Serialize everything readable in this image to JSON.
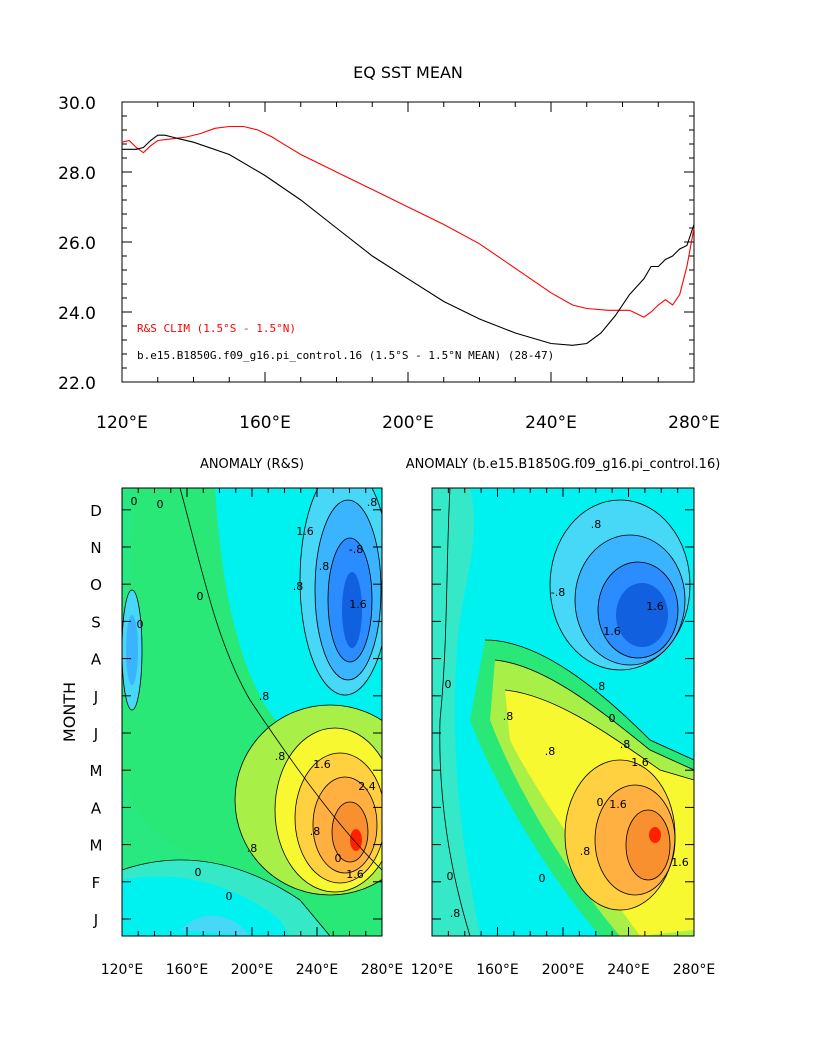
{
  "chart_data": [
    {
      "type": "line",
      "title": "EQ SST MEAN",
      "xlabel": "",
      "ylabel": "",
      "xlim": [
        120,
        280
      ],
      "ylim": [
        22.0,
        30.0
      ],
      "xticks": [
        "120°E",
        "160°E",
        "200°E",
        "240°E",
        "280°E"
      ],
      "yticks": [
        "22.0",
        "24.0",
        "26.0",
        "28.0",
        "30.0"
      ],
      "legend_position": "bottom-left",
      "series": [
        {
          "name": "R&S CLIM (1.5°S - 1.5°N)",
          "color": "#ff0000",
          "x": [
            120,
            122,
            124,
            126,
            128,
            130,
            134,
            138,
            142,
            146,
            150,
            154,
            158,
            162,
            166,
            170,
            176,
            182,
            190,
            200,
            210,
            220,
            230,
            240,
            246,
            250,
            256,
            262,
            266,
            268,
            270,
            272,
            274,
            276,
            278,
            280
          ],
          "y": [
            28.85,
            28.9,
            28.7,
            28.55,
            28.75,
            28.9,
            28.95,
            29.0,
            29.1,
            29.25,
            29.3,
            29.3,
            29.2,
            29.0,
            28.75,
            28.5,
            28.2,
            27.9,
            27.5,
            27.0,
            26.5,
            25.95,
            25.25,
            24.55,
            24.2,
            24.1,
            24.05,
            24.05,
            23.85,
            24.0,
            24.2,
            24.35,
            24.2,
            24.5,
            25.3,
            26.4
          ]
        },
        {
          "name": "b.e15.B1850G.f09_g16.pi_control.16 (1.5°S - 1.5°N MEAN) (28-47)",
          "color": "#000000",
          "x": [
            120,
            122,
            124,
            126,
            128,
            130,
            132,
            134,
            136,
            140,
            150,
            160,
            170,
            180,
            190,
            200,
            210,
            220,
            230,
            240,
            246,
            250,
            254,
            258,
            262,
            266,
            268,
            270,
            272,
            274,
            276,
            278,
            280
          ],
          "y": [
            28.65,
            28.65,
            28.65,
            28.7,
            28.9,
            29.05,
            29.05,
            29.0,
            28.95,
            28.85,
            28.5,
            27.9,
            27.2,
            26.4,
            25.6,
            24.95,
            24.3,
            23.8,
            23.4,
            23.1,
            23.05,
            23.1,
            23.4,
            23.9,
            24.5,
            24.95,
            25.3,
            25.3,
            25.5,
            25.6,
            25.8,
            25.9,
            26.5
          ]
        }
      ]
    },
    {
      "type": "heatmap",
      "title": "ANOMALY (R&S)",
      "xlabel": "",
      "ylabel": "MONTH",
      "xlim": [
        120,
        280
      ],
      "xticks": [
        "120°E",
        "160°E",
        "200°E",
        "240°E",
        "280°E"
      ],
      "yticks": [
        "J",
        "F",
        "M",
        "A",
        "M",
        "J",
        "J",
        "A",
        "S",
        "O",
        "N",
        "D"
      ],
      "contour_labels": [
        "0",
        "0",
        "0",
        "0",
        ".8",
        ".8",
        ".8",
        ".8",
        "1.6",
        "1.6",
        ".8",
        "1.6",
        "2.4",
        "0",
        "0",
        ".8",
        "-.8",
        ".8",
        "1.6",
        "0"
      ],
      "color_scale": [
        "#1060e0",
        "#2a8cff",
        "#3ab4ff",
        "#46d8f6",
        "#00f2f0",
        "#34e8c8",
        "#29e878",
        "#a8f048",
        "#f8f830",
        "#ffd040",
        "#ffb040",
        "#f89030",
        "#ff2000"
      ],
      "features": [
        {
          "kind": "negative-anomaly",
          "lon": 263,
          "month": 9.0,
          "peak": -2.0
        },
        {
          "kind": "positive-anomaly",
          "lon": 265,
          "month": 2.6,
          "peak": 3.0
        }
      ]
    },
    {
      "type": "heatmap",
      "title": "ANOMALY (b.e15.B1850G.f09_g16.pi_control.16)",
      "xlabel": "",
      "ylabel": "",
      "xlim": [
        120,
        280
      ],
      "xticks": [
        "120°E",
        "160°E",
        "200°E",
        "240°E",
        "280°E"
      ],
      "yticks": [],
      "contour_labels": [
        ".8",
        "1.6",
        "1.6",
        ".8",
        "-.8",
        "0",
        "0",
        ".8",
        ".8",
        ".8",
        "1.6",
        ".8",
        "1.6",
        "1.6",
        "0",
        "0",
        "0",
        ".8"
      ],
      "color_scale": [
        "#1060e0",
        "#2a8cff",
        "#3ab4ff",
        "#46d8f6",
        "#00f2f0",
        "#34e8c8",
        "#29e878",
        "#a8f048",
        "#f8f830",
        "#ffd040",
        "#ffb040",
        "#f89030",
        "#ff2000"
      ],
      "features": [
        {
          "kind": "negative-anomaly",
          "lon": 240,
          "month": 9.2,
          "peak": -1.8
        },
        {
          "kind": "positive-anomaly",
          "lon": 256,
          "month": 3.8,
          "peak": 2.2
        }
      ]
    }
  ]
}
